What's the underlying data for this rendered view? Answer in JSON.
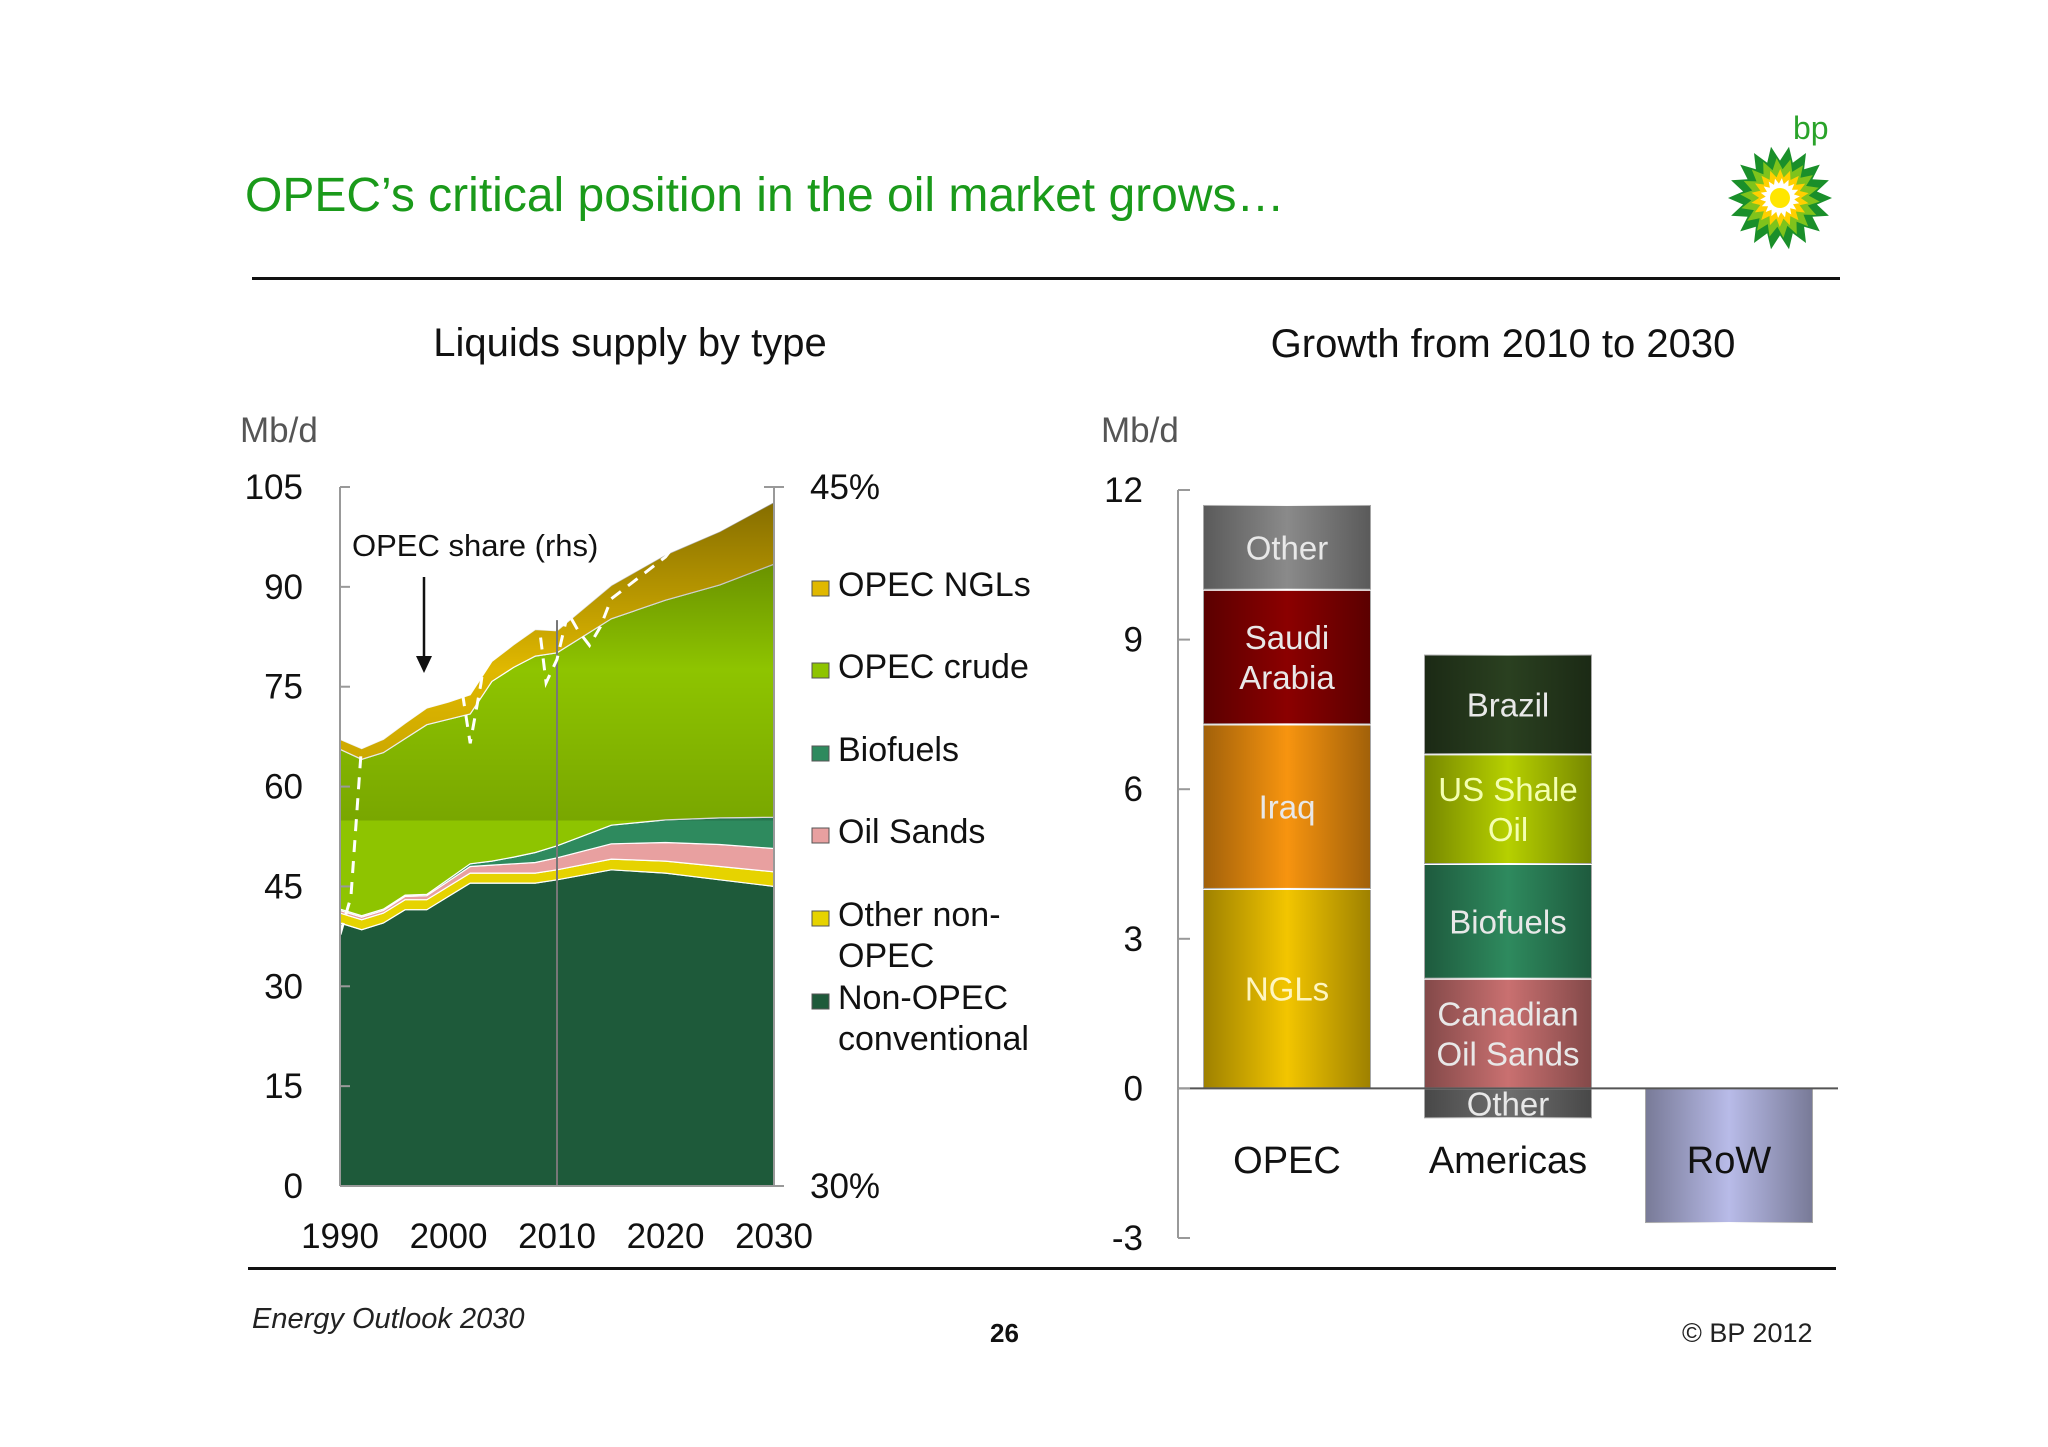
{
  "title": "OPEC’s critical position in the oil market grows…",
  "logo_text": "bp",
  "logo_icon": "bp-helios-icon",
  "footer": {
    "left": "Energy Outlook 2030",
    "page": "26",
    "copyright": "© BP 2012"
  },
  "chart_data": [
    {
      "type": "area",
      "title": "Liquids supply by type",
      "ylabel": "Mb/d",
      "ylim": [
        0,
        105
      ],
      "yticks": [
        "0",
        "15",
        "30",
        "45",
        "60",
        "75",
        "90",
        "105"
      ],
      "y2lim": [
        30,
        45
      ],
      "y2ticks": [
        "30%",
        "45%"
      ],
      "xticks": [
        "1990",
        "2000",
        "2010",
        "2020",
        "2030"
      ],
      "x": [
        1990,
        1992,
        1994,
        1996,
        1998,
        2000,
        2002,
        2004,
        2006,
        2008,
        2010,
        2015,
        2020,
        2025,
        2030
      ],
      "stack_order": [
        "Non-OPEC conventional",
        "Other non-OPEC",
        "Oil Sands",
        "Biofuels",
        "OPEC crude",
        "OPEC NGLs"
      ],
      "series": [
        {
          "name": "Non-OPEC conventional",
          "color": "#1e5a3a",
          "values": [
            39.5,
            38.5,
            39.5,
            41.5,
            41.5,
            43.5,
            45.5,
            45.5,
            45.5,
            45.5,
            46,
            47.5,
            47,
            46,
            45
          ]
        },
        {
          "name": "Other non-OPEC",
          "color": "#e6d300",
          "values": [
            1.5,
            1.5,
            1.5,
            1.5,
            1.5,
            1.5,
            1.5,
            1.5,
            1.5,
            1.5,
            1.5,
            1.6,
            1.8,
            2.0,
            2.2
          ]
        },
        {
          "name": "Oil Sands",
          "color": "#e8a0a0",
          "values": [
            0.4,
            0.4,
            0.4,
            0.5,
            0.6,
            0.8,
            1.0,
            1.2,
            1.4,
            1.6,
            1.8,
            2.3,
            2.8,
            3.3,
            3.5
          ]
        },
        {
          "name": "Biofuels",
          "color": "#2e8a5e",
          "values": [
            0.2,
            0.2,
            0.2,
            0.2,
            0.2,
            0.3,
            0.4,
            0.6,
            1.0,
            1.5,
            1.8,
            2.8,
            3.4,
            4.0,
            4.7
          ]
        },
        {
          "name": "OPEC crude",
          "color": "#8ec400",
          "values": [
            24,
            23.5,
            23.5,
            23.5,
            25.5,
            24,
            22.5,
            27,
            28.5,
            29.5,
            29,
            31,
            33,
            35,
            38
          ]
        },
        {
          "name": "OPEC NGLs",
          "color": "#e0b800",
          "values": [
            1.5,
            1.6,
            2.0,
            2.3,
            2.5,
            2.6,
            2.9,
            3.0,
            3.4,
            4.0,
            3.3,
            5.0,
            6.8,
            8.0,
            9.3
          ]
        }
      ],
      "share_series": {
        "name": "OPEC share (rhs)",
        "x": [
          1990,
          1991,
          1992,
          1993,
          1994,
          1995,
          1996,
          1997,
          1998,
          1999,
          2000,
          2001,
          2002,
          2003,
          2004,
          2005,
          2006,
          2007,
          2008,
          2009,
          2010,
          2011,
          2012,
          2013,
          2014,
          2015,
          2020,
          2025,
          2030
        ],
        "values": [
          35.4,
          36.2,
          39.5,
          39.9,
          40.2,
          40.4,
          40.6,
          41.1,
          41.8,
          42.4,
          41.9,
          41.0,
          39.5,
          40.8,
          42.5,
          43.1,
          42.9,
          42.5,
          42.7,
          40.8,
          41.3,
          42.3,
          41.9,
          41.6,
          42.0,
          42.6,
          43.5,
          45.0,
          45.8
        ]
      },
      "annotations": [
        "OPEC share (rhs)"
      ],
      "legend": {
        "placement": "right",
        "entries": [
          {
            "label": "OPEC NGLs",
            "color": "#e0b800"
          },
          {
            "label": "OPEC crude",
            "color": "#8ec400"
          },
          {
            "label": "Biofuels",
            "color": "#2e8a5e"
          },
          {
            "label": "Oil Sands",
            "color": "#e8a0a0"
          },
          {
            "label": "Other non-OPEC",
            "color": "#e6d300"
          },
          {
            "label": "Non-OPEC conventional",
            "color": "#1e5a3a"
          }
        ]
      },
      "vline_x": 2010
    },
    {
      "type": "bar",
      "title": "Growth from 2010 to 2030",
      "ylabel": "Mb/d",
      "ylim": [
        -3,
        12
      ],
      "yticks": [
        "-3",
        "0",
        "3",
        "6",
        "9",
        "12"
      ],
      "categories": [
        "OPEC",
        "Americas",
        "RoW"
      ],
      "stacks": [
        {
          "category": "OPEC",
          "segments": [
            {
              "label": "NGLs",
              "value": 4.0,
              "color": "#f2c500"
            },
            {
              "label": "Iraq",
              "value": 3.3,
              "color": "#f7940f"
            },
            {
              "label": "Saudi Arabia",
              "value": 2.7,
              "color": "#8b0000"
            },
            {
              "label": "Other",
              "value": 1.7,
              "color": "#8a8a8a"
            }
          ]
        },
        {
          "category": "Americas",
          "segments": [
            {
              "label": "Other",
              "value": -0.6,
              "color": "#6e6e6e"
            },
            {
              "label": "Canadian Oil Sands",
              "value": 2.2,
              "color": "#c97070"
            },
            {
              "label": "Biofuels",
              "value": 2.3,
              "color": "#2e8a5e"
            },
            {
              "label": "US Shale Oil",
              "value": 2.2,
              "color": "#b6d000"
            },
            {
              "label": "Brazil",
              "value": 2.0,
              "color": "#2a4020"
            }
          ]
        },
        {
          "category": "RoW",
          "segments": [
            {
              "label": "",
              "value": -2.7,
              "color": "#b8bbe8"
            }
          ]
        }
      ]
    }
  ]
}
